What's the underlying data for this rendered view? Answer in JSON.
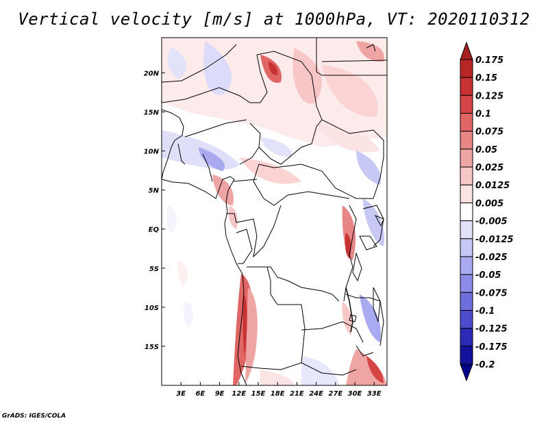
{
  "title": "Vertical velocity [m/s] at 1000hPa, VT: 2020110312",
  "credit": "GrADS: IGES/COLA",
  "lat_ticks": [
    "20N",
    "15N",
    "10N",
    "5N",
    "EQ",
    "5S",
    "10S",
    "15S"
  ],
  "lat_values": [
    20,
    15,
    10,
    5,
    0,
    -5,
    -10,
    -15
  ],
  "lon_ticks": [
    "3E",
    "6E",
    "9E",
    "12E",
    "15E",
    "18E",
    "21E",
    "24E",
    "27E",
    "30E",
    "33E"
  ],
  "lon_values": [
    3,
    6,
    9,
    12,
    15,
    18,
    21,
    24,
    27,
    30,
    33
  ],
  "map_extent": {
    "lon": [
      0,
      35
    ],
    "lat": [
      -20,
      24.5
    ]
  },
  "colorbar": {
    "labels": [
      "0.175",
      "0.15",
      "0.125",
      "0.1",
      "0.075",
      "0.05",
      "0.025",
      "0.0125",
      "0.005",
      "-0.005",
      "-0.0125",
      "-0.025",
      "-0.05",
      "-0.075",
      "-0.1",
      "-0.125",
      "-0.175",
      "-0.2"
    ],
    "colors": [
      "#a81f1f",
      "#b92626",
      "#c83232",
      "#d54545",
      "#e06565",
      "#e88585",
      "#f0a5a5",
      "#f7c6c6",
      "#fde4e4",
      "#ffffff",
      "#e2e2fb",
      "#c8c8f5",
      "#aaaaf0",
      "#8c8ce8",
      "#6e6edc",
      "#4c4ccc",
      "#2a2ab4",
      "#12129c",
      "#000088"
    ]
  }
}
